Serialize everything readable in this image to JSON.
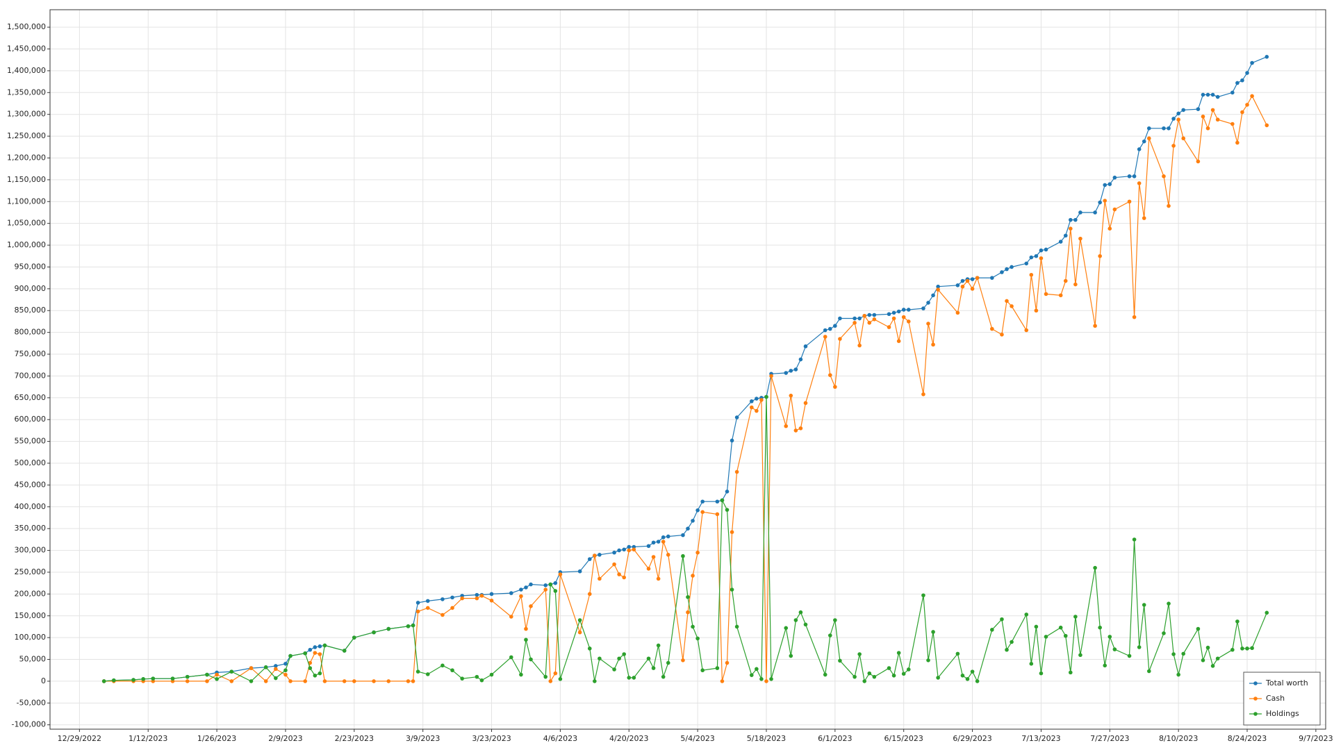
{
  "chart_data": {
    "type": "line",
    "x": [
      "1/3/2023",
      "1/5/2023",
      "1/9/2023",
      "1/11/2023",
      "1/13/2023",
      "1/17/2023",
      "1/20/2023",
      "1/24/2023",
      "1/26/2023",
      "1/29/2023",
      "2/2/2023",
      "2/5/2023",
      "2/7/2023",
      "2/9/2023",
      "2/10/2023",
      "2/13/2023",
      "2/14/2023",
      "2/15/2023",
      "2/16/2023",
      "2/17/2023",
      "2/21/2023",
      "2/23/2023",
      "2/27/2023",
      "3/2/2023",
      "3/6/2023",
      "3/7/2023",
      "3/8/2023",
      "3/10/2023",
      "3/13/2023",
      "3/15/2023",
      "3/17/2023",
      "3/20/2023",
      "3/21/2023",
      "3/23/2023",
      "3/27/2023",
      "3/29/2023",
      "3/30/2023",
      "3/31/2023",
      "4/3/2023",
      "4/4/2023",
      "4/5/2023",
      "4/6/2023",
      "4/10/2023",
      "4/12/2023",
      "4/13/2023",
      "4/14/2023",
      "4/17/2023",
      "4/18/2023",
      "4/19/2023",
      "4/20/2023",
      "4/21/2023",
      "4/24/2023",
      "4/25/2023",
      "4/26/2023",
      "4/27/2023",
      "4/28/2023",
      "5/1/2023",
      "5/2/2023",
      "5/3/2023",
      "5/4/2023",
      "5/5/2023",
      "5/8/2023",
      "5/9/2023",
      "5/10/2023",
      "5/11/2023",
      "5/12/2023",
      "5/15/2023",
      "5/16/2023",
      "5/17/2023",
      "5/18/2023",
      "5/19/2023",
      "5/22/2023",
      "5/23/2023",
      "5/24/2023",
      "5/25/2023",
      "5/26/2023",
      "5/30/2023",
      "5/31/2023",
      "6/1/2023",
      "6/2/2023",
      "6/5/2023",
      "6/6/2023",
      "6/7/2023",
      "6/8/2023",
      "6/9/2023",
      "6/12/2023",
      "6/13/2023",
      "6/14/2023",
      "6/15/2023",
      "6/16/2023",
      "6/19/2023",
      "6/20/2023",
      "6/21/2023",
      "6/22/2023",
      "6/26/2023",
      "6/27/2023",
      "6/28/2023",
      "6/29/2023",
      "6/30/2023",
      "7/3/2023",
      "7/5/2023",
      "7/6/2023",
      "7/7/2023",
      "7/10/2023",
      "7/11/2023",
      "7/12/2023",
      "7/13/2023",
      "7/14/2023",
      "7/17/2023",
      "7/18/2023",
      "7/19/2023",
      "7/20/2023",
      "7/21/2023",
      "7/24/2023",
      "7/25/2023",
      "7/26/2023",
      "7/27/2023",
      "7/28/2023",
      "7/31/2023",
      "8/1/2023",
      "8/2/2023",
      "8/3/2023",
      "8/4/2023",
      "8/7/2023",
      "8/8/2023",
      "8/9/2023",
      "8/10/2023",
      "8/11/2023",
      "8/14/2023",
      "8/15/2023",
      "8/16/2023",
      "8/17/2023",
      "8/18/2023",
      "8/21/2023",
      "8/22/2023",
      "8/23/2023",
      "8/24/2023",
      "8/25/2023",
      "8/28/2023"
    ],
    "series": [
      {
        "name": "Total worth",
        "color": "#1f77b4",
        "values": [
          0,
          2000,
          3000,
          5000,
          6000,
          6000,
          10000,
          15000,
          20000,
          22000,
          30000,
          32000,
          35000,
          40000,
          58000,
          64000,
          72000,
          78000,
          80000,
          82000,
          70000,
          100000,
          112000,
          120000,
          126000,
          128000,
          180000,
          184000,
          188000,
          192000,
          196000,
          198000,
          198000,
          200000,
          202000,
          210000,
          215000,
          222000,
          220000,
          222000,
          225000,
          250000,
          252000,
          280000,
          288000,
          290000,
          295000,
          300000,
          302000,
          308000,
          308000,
          310000,
          318000,
          320000,
          330000,
          332000,
          335000,
          350000,
          368000,
          392000,
          412000,
          412000,
          415000,
          435000,
          552000,
          605000,
          642000,
          648000,
          650000,
          652000,
          705000,
          707000,
          712000,
          715000,
          738000,
          768000,
          805000,
          808000,
          815000,
          832000,
          832000,
          832000,
          838000,
          840000,
          840000,
          842000,
          845000,
          848000,
          852000,
          852000,
          855000,
          868000,
          885000,
          905000,
          908000,
          918000,
          922000,
          922000,
          925000,
          925000,
          938000,
          945000,
          950000,
          958000,
          972000,
          975000,
          988000,
          990000,
          1008000,
          1022000,
          1058000,
          1058000,
          1075000,
          1075000,
          1098000,
          1138000,
          1140000,
          1155000,
          1158000,
          1158000,
          1220000,
          1238000,
          1268000,
          1268000,
          1268000,
          1290000,
          1302000,
          1310000,
          1312000,
          1345000,
          1345000,
          1345000,
          1340000,
          1350000,
          1372000,
          1378000,
          1395000,
          1418000,
          1432000
        ]
      },
      {
        "name": "Cash",
        "color": "#ff7f0e",
        "values": [
          0,
          0,
          0,
          0,
          0,
          0,
          0,
          0,
          15000,
          0,
          30000,
          0,
          28000,
          15000,
          0,
          0,
          42000,
          65000,
          62000,
          0,
          0,
          0,
          0,
          0,
          0,
          0,
          160000,
          168000,
          152000,
          168000,
          190000,
          190000,
          196000,
          185000,
          148000,
          195000,
          120000,
          172000,
          210000,
          0,
          18000,
          245000,
          112000,
          200000,
          288000,
          235000,
          268000,
          245000,
          238000,
          300000,
          302000,
          258000,
          285000,
          235000,
          320000,
          290000,
          48000,
          158000,
          242000,
          295000,
          388000,
          383000,
          0,
          42000,
          342000,
          480000,
          628000,
          620000,
          645000,
          0,
          700000,
          585000,
          655000,
          575000,
          580000,
          638000,
          790000,
          702000,
          675000,
          785000,
          822000,
          770000,
          838000,
          822000,
          830000,
          812000,
          832000,
          780000,
          835000,
          825000,
          658000,
          820000,
          772000,
          898000,
          845000,
          905000,
          918000,
          900000,
          925000,
          808000,
          795000,
          872000,
          860000,
          805000,
          932000,
          850000,
          970000,
          888000,
          885000,
          918000,
          1038000,
          910000,
          1015000,
          815000,
          975000,
          1102000,
          1038000,
          1082000,
          1100000,
          835000,
          1142000,
          1062000,
          1245000,
          1158000,
          1090000,
          1228000,
          1288000,
          1245000,
          1192000,
          1295000,
          1268000,
          1310000,
          1288000,
          1278000,
          1235000,
          1305000,
          1322000,
          1342000,
          1275000
        ]
      },
      {
        "name": "Holdings",
        "color": "#2ca02c",
        "values": [
          0,
          2000,
          3000,
          5000,
          6000,
          6000,
          10000,
          15000,
          5000,
          22000,
          0,
          32000,
          7000,
          25000,
          58000,
          64000,
          30000,
          13000,
          18000,
          82000,
          70000,
          100000,
          112000,
          120000,
          126000,
          128000,
          22000,
          16000,
          36000,
          25000,
          6000,
          10000,
          2000,
          15000,
          55000,
          15000,
          95000,
          50000,
          10000,
          222000,
          207000,
          5000,
          140000,
          75000,
          0,
          52000,
          27000,
          52000,
          62000,
          8000,
          8000,
          52000,
          30000,
          82000,
          10000,
          42000,
          287000,
          193000,
          125000,
          98000,
          25000,
          30000,
          415000,
          393000,
          210000,
          125000,
          14000,
          28000,
          5000,
          652000,
          5000,
          122000,
          58000,
          140000,
          158000,
          130000,
          15000,
          105000,
          140000,
          47000,
          10000,
          62000,
          0,
          18000,
          10000,
          30000,
          13000,
          65000,
          17000,
          27000,
          197000,
          48000,
          113000,
          8000,
          63000,
          13000,
          5000,
          22000,
          0,
          118000,
          142000,
          72000,
          90000,
          153000,
          40000,
          125000,
          18000,
          102000,
          123000,
          104000,
          20000,
          148000,
          60000,
          260000,
          123000,
          36000,
          102000,
          73000,
          58000,
          325000,
          78000,
          175000,
          23000,
          110000,
          178000,
          62000,
          15000,
          63000,
          120000,
          48000,
          77000,
          35000,
          52000,
          72000,
          137000,
          75000,
          75000,
          76000,
          157000
        ]
      }
    ],
    "xlim": [
      "12/23/2022",
      "9/9/2023"
    ],
    "xticks": [
      "12/29/2022",
      "1/12/2023",
      "1/26/2023",
      "2/9/2023",
      "2/23/2023",
      "3/9/2023",
      "3/23/2023",
      "4/6/2023",
      "4/20/2023",
      "5/4/2023",
      "5/18/2023",
      "6/1/2023",
      "6/15/2023",
      "6/29/2023",
      "7/13/2023",
      "7/27/2023",
      "8/10/2023",
      "8/24/2023",
      "9/7/2023"
    ],
    "ylim": [
      -110000,
      1540000
    ],
    "yticks": [
      {
        "value": -100000,
        "label": "-100,000"
      },
      {
        "value": -50000,
        "label": "-50,000"
      },
      0,
      {
        "value": 50000,
        "label": "50,000"
      },
      {
        "value": 100000,
        "label": "100,000"
      },
      {
        "value": 150000,
        "label": "150,000"
      },
      {
        "value": 200000,
        "label": "200,000"
      },
      {
        "value": 250000,
        "label": "250,000"
      },
      {
        "value": 300000,
        "label": "300,000"
      },
      {
        "value": 350000,
        "label": "350,000"
      },
      {
        "value": 400000,
        "label": "400,000"
      },
      {
        "value": 450000,
        "label": "450,000"
      },
      {
        "value": 500000,
        "label": "500,000"
      },
      {
        "value": 550000,
        "label": "550,000"
      },
      {
        "value": 600000,
        "label": "600,000"
      },
      {
        "value": 650000,
        "label": "650,000"
      },
      {
        "value": 700000,
        "label": "700,000"
      },
      {
        "value": 750000,
        "label": "750,000"
      },
      {
        "value": 800000,
        "label": "800,000"
      },
      {
        "value": 850000,
        "label": "850,000"
      },
      {
        "value": 900000,
        "label": "900,000"
      },
      {
        "value": 950000,
        "label": "950,000"
      },
      {
        "value": 1000000,
        "label": "1,000,000"
      },
      {
        "value": 1050000,
        "label": "1,050,000"
      },
      {
        "value": 1100000,
        "label": "1,100,000"
      },
      {
        "value": 1150000,
        "label": "1,150,000"
      },
      {
        "value": 1200000,
        "label": "1,200,000"
      },
      {
        "value": 1250000,
        "label": "1,250,000"
      },
      {
        "value": 1300000,
        "label": "1,300,000"
      },
      {
        "value": 1350000,
        "label": "1,350,000"
      },
      {
        "value": 1400000,
        "label": "1,400,000"
      },
      {
        "value": 1450000,
        "label": "1,450,000"
      },
      {
        "value": 1500000,
        "label": "1,500,000"
      }
    ],
    "grid": true,
    "legend": "lower right"
  }
}
